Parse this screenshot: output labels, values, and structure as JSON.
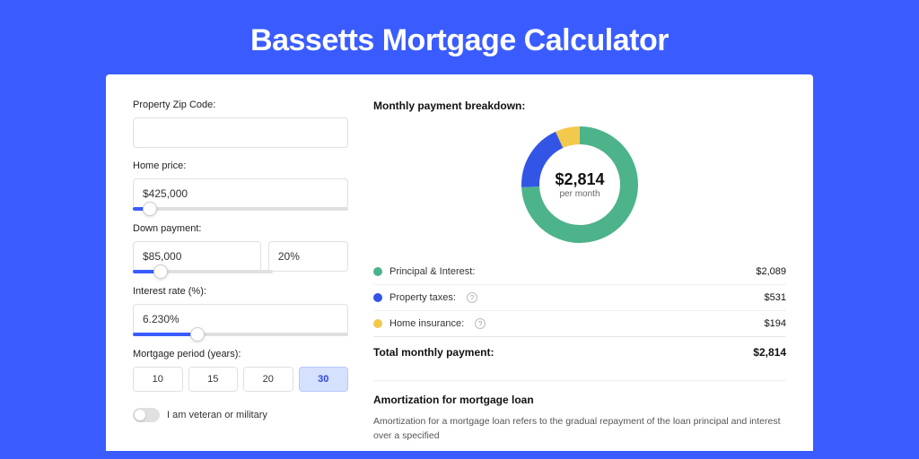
{
  "page": {
    "title": "Bassetts Mortgage Calculator",
    "background_color": "#3a5cff",
    "card_background": "#ffffff"
  },
  "form": {
    "zip": {
      "label": "Property Zip Code:",
      "value": ""
    },
    "home_price": {
      "label": "Home price:",
      "value": "$425,000",
      "slider_pct": 8
    },
    "down_payment": {
      "label": "Down payment:",
      "amount": "$85,000",
      "pct": "20%",
      "slider_pct": 20
    },
    "interest_rate": {
      "label": "Interest rate (%):",
      "value": "6.230%",
      "slider_pct": 30
    },
    "period": {
      "label": "Mortgage period (years):",
      "options": [
        "10",
        "15",
        "20",
        "30"
      ],
      "selected": "30"
    },
    "veteran": {
      "label": "I am veteran or military",
      "on": false
    }
  },
  "breakdown": {
    "title": "Monthly payment breakdown:",
    "center_amount": "$2,814",
    "center_sub": "per month",
    "donut": {
      "size": 130,
      "thickness": 20,
      "background": "#ffffff",
      "slices": [
        {
          "label": "Principal & Interest:",
          "value": "$2,089",
          "color": "#4db38a",
          "fraction": 0.742,
          "info": false
        },
        {
          "label": "Property taxes:",
          "value": "$531",
          "color": "#3355e6",
          "fraction": 0.189,
          "info": true
        },
        {
          "label": "Home insurance:",
          "value": "$194",
          "color": "#f2c94c",
          "fraction": 0.069,
          "info": true
        }
      ]
    },
    "total": {
      "label": "Total monthly payment:",
      "value": "$2,814"
    }
  },
  "amortization": {
    "title": "Amortization for mortgage loan",
    "text": "Amortization for a mortgage loan refers to the gradual repayment of the loan principal and interest over a specified"
  }
}
